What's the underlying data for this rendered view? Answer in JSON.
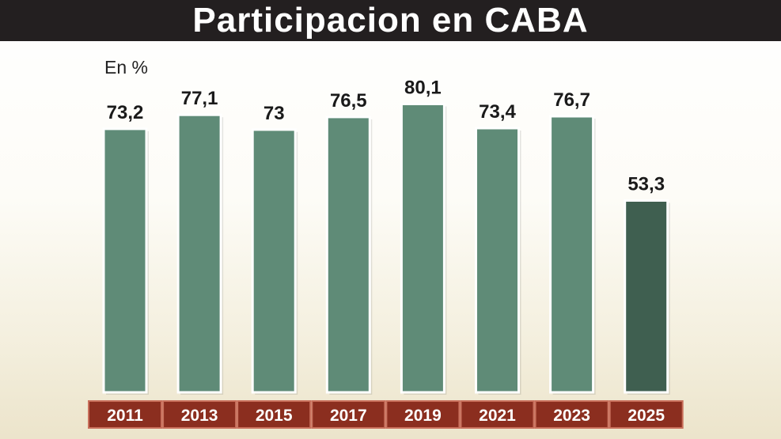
{
  "header": {
    "title": "Participacion en CABA"
  },
  "chart_data": {
    "type": "bar",
    "title": "Participacion en CABA",
    "unit_label": "En %",
    "categories": [
      "2011",
      "2013",
      "2015",
      "2017",
      "2019",
      "2021",
      "2023",
      "2025"
    ],
    "values": [
      73.2,
      77.1,
      73,
      76.5,
      80.1,
      73.4,
      76.7,
      53.3
    ],
    "value_labels": [
      "73,2",
      "77,1",
      "73",
      "76,5",
      "80,1",
      "73,4",
      "76,7",
      "53,3"
    ],
    "ylim": [
      0,
      100
    ],
    "grid": false,
    "colors": {
      "bar": "#5f8b77",
      "bar_highlight": "#3f5f50",
      "bar_border": "#ffffff",
      "year_box": "#8b2e1f",
      "year_box_border": "#c9705c",
      "title_bg": "#231f20"
    },
    "highlight_index": 7
  }
}
